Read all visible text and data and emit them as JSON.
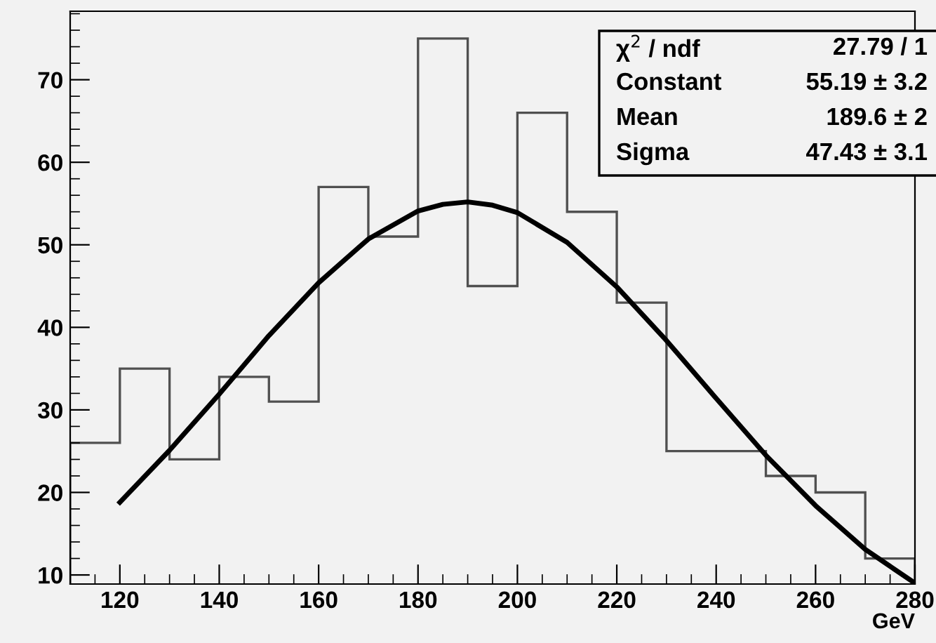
{
  "chart_data": {
    "type": "histogram",
    "xlabel": "GeV",
    "bins": [
      110,
      120,
      130,
      140,
      150,
      160,
      170,
      180,
      190,
      200,
      210,
      220,
      230,
      240,
      250,
      260,
      270,
      280
    ],
    "series": [
      {
        "color": "#505050",
        "values": [
          26,
          35,
          24,
          34,
          31,
          57,
          51,
          75,
          45,
          66,
          54,
          43,
          25,
          25,
          22,
          20,
          12
        ]
      },
      {
        "type": "line",
        "color": "#000000",
        "x": [
          120,
          130,
          140,
          150,
          160,
          170,
          180,
          185,
          190,
          195,
          200,
          210,
          220,
          230,
          240,
          250,
          260,
          270,
          280
        ],
        "values": [
          18.8,
          25.1,
          31.9,
          39.0,
          45.4,
          50.7,
          54.1,
          54.9,
          55.2,
          54.8,
          53.9,
          50.3,
          44.9,
          38.4,
          31.4,
          24.5,
          18.4,
          13.1,
          9.0
        ]
      }
    ],
    "xlim": [
      110,
      280
    ],
    "ylim": [
      8.9,
      78.3
    ],
    "xticks": [
      120,
      140,
      160,
      180,
      200,
      220,
      240,
      260,
      280
    ],
    "yticks": [
      10,
      20,
      30,
      40,
      50,
      60,
      70
    ],
    "annotations": [
      "χ$^{2}$ / ndf",
      "27.79 / 1",
      "Constant",
      "55.19 ± 3.2",
      "Mean",
      "189.6 ± 2",
      "Sigma",
      "47.43 ± 3.1"
    ],
    "grid": false,
    "legend": false
  }
}
